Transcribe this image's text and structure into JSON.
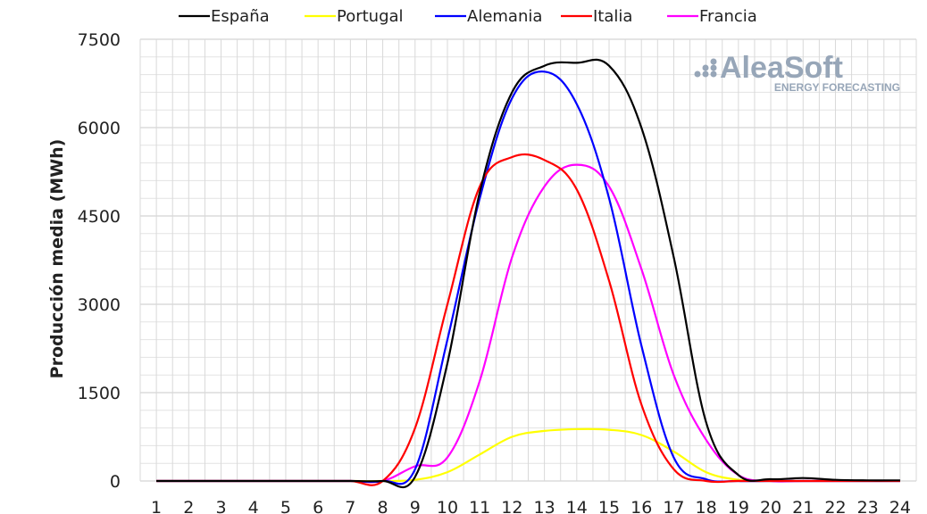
{
  "chart_data": {
    "type": "line",
    "xlabel": "",
    "ylabel": "Producción media (MWh)",
    "ylim": [
      0,
      7500
    ],
    "yticks": [
      0,
      1500,
      3000,
      4500,
      6000,
      7500
    ],
    "x": [
      1,
      2,
      3,
      4,
      5,
      6,
      7,
      8,
      9,
      10,
      11,
      12,
      13,
      14,
      15,
      16,
      17,
      18,
      19,
      20,
      21,
      22,
      23,
      24
    ],
    "x_tick_labels": [
      "1",
      "2",
      "3",
      "4",
      "5",
      "6",
      "7",
      "8",
      "9",
      "10",
      "11",
      "12",
      "13",
      "14",
      "15",
      "16",
      "17",
      "18",
      "19",
      "20",
      "21",
      "22",
      "23",
      "24"
    ],
    "grid": true,
    "legend_position": "top",
    "series": [
      {
        "name": "España",
        "color": "#000000",
        "values": [
          0,
          0,
          0,
          0,
          0,
          0,
          0,
          0,
          70,
          2000,
          4900,
          6600,
          7050,
          7100,
          7050,
          6000,
          3800,
          1000,
          100,
          30,
          50,
          20,
          10,
          10
        ]
      },
      {
        "name": "Portugal",
        "color": "#ffff00",
        "values": [
          0,
          0,
          0,
          0,
          0,
          0,
          0,
          0,
          20,
          150,
          450,
          750,
          850,
          880,
          870,
          780,
          500,
          150,
          20,
          0,
          0,
          0,
          0,
          0
        ]
      },
      {
        "name": "Alemania",
        "color": "#0000ff",
        "values": [
          0,
          0,
          0,
          0,
          0,
          0,
          0,
          0,
          200,
          2400,
          4800,
          6500,
          6950,
          6400,
          4800,
          2300,
          400,
          30,
          0,
          0,
          0,
          0,
          0,
          0
        ]
      },
      {
        "name": "Italia",
        "color": "#ff0000",
        "values": [
          0,
          0,
          0,
          0,
          0,
          0,
          0,
          0,
          900,
          3000,
          5000,
          5500,
          5450,
          4950,
          3400,
          1300,
          200,
          0,
          0,
          0,
          0,
          0,
          0,
          0
        ]
      },
      {
        "name": "Francia",
        "color": "#ff00ff",
        "values": [
          0,
          0,
          0,
          0,
          0,
          0,
          0,
          0,
          250,
          400,
          1700,
          3800,
          5000,
          5370,
          5000,
          3600,
          1800,
          700,
          100,
          0,
          0,
          0,
          0,
          0
        ]
      }
    ]
  },
  "logo": {
    "name": "AleaSoft",
    "tagline": "ENERGY FORECASTING",
    "color": "#97a6b8"
  }
}
